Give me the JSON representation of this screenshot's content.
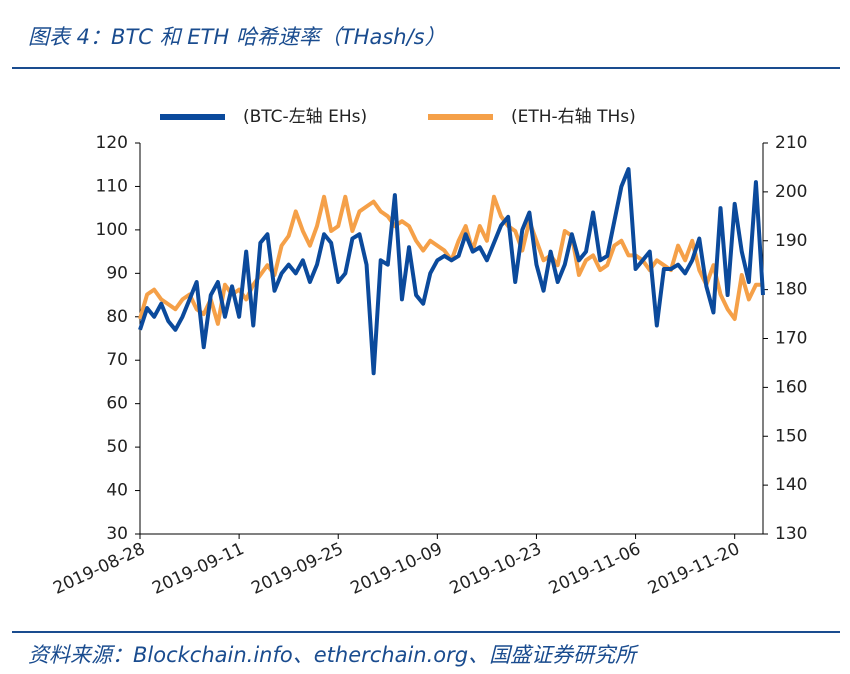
{
  "chart_data": {
    "type": "line",
    "title": "图表 4：BTC 和 ETH 哈希速率（THash/s）",
    "source": "资料来源：Blockchain.info、etherchain.org、国盛证券研究所",
    "x": [
      "2019-08-28",
      "2019-08-29",
      "2019-08-30",
      "2019-08-31",
      "2019-09-01",
      "2019-09-02",
      "2019-09-03",
      "2019-09-04",
      "2019-09-05",
      "2019-09-06",
      "2019-09-07",
      "2019-09-08",
      "2019-09-09",
      "2019-09-10",
      "2019-09-11",
      "2019-09-12",
      "2019-09-13",
      "2019-09-14",
      "2019-09-15",
      "2019-09-16",
      "2019-09-17",
      "2019-09-18",
      "2019-09-19",
      "2019-09-20",
      "2019-09-21",
      "2019-09-22",
      "2019-09-23",
      "2019-09-24",
      "2019-09-25",
      "2019-09-26",
      "2019-09-27",
      "2019-09-28",
      "2019-09-29",
      "2019-09-30",
      "2019-10-01",
      "2019-10-02",
      "2019-10-03",
      "2019-10-04",
      "2019-10-05",
      "2019-10-06",
      "2019-10-07",
      "2019-10-08",
      "2019-10-09",
      "2019-10-10",
      "2019-10-11",
      "2019-10-12",
      "2019-10-13",
      "2019-10-14",
      "2019-10-15",
      "2019-10-16",
      "2019-10-17",
      "2019-10-18",
      "2019-10-19",
      "2019-10-20",
      "2019-10-21",
      "2019-10-22",
      "2019-10-23",
      "2019-10-24",
      "2019-10-25",
      "2019-10-26",
      "2019-10-27",
      "2019-10-28",
      "2019-10-29",
      "2019-10-30",
      "2019-10-31",
      "2019-11-01",
      "2019-11-02",
      "2019-11-03",
      "2019-11-04",
      "2019-11-05",
      "2019-11-06",
      "2019-11-07",
      "2019-11-08",
      "2019-11-09",
      "2019-11-10",
      "2019-11-11",
      "2019-11-12",
      "2019-11-13",
      "2019-11-14",
      "2019-11-15",
      "2019-11-16",
      "2019-11-17",
      "2019-11-18",
      "2019-11-19",
      "2019-11-20",
      "2019-11-21",
      "2019-11-22",
      "2019-11-23",
      "2019-11-24"
    ],
    "xticks": [
      "2019-08-28",
      "2019-09-11",
      "2019-09-25",
      "2019-10-09",
      "2019-10-23",
      "2019-11-06",
      "2019-11-20"
    ],
    "series": [
      {
        "name": "(BTC-左轴 EHs)",
        "color": "#0b4a9c",
        "values": [
          77,
          82,
          80,
          83,
          79,
          77,
          80,
          84,
          88,
          73,
          85,
          88,
          80,
          87,
          80,
          95,
          78,
          97,
          99,
          86,
          90,
          92,
          90,
          93,
          88,
          92,
          99,
          97,
          88,
          90,
          98,
          99,
          92,
          67,
          93,
          92,
          108,
          84,
          96,
          85,
          83,
          90,
          93,
          94,
          93,
          94,
          99,
          95,
          96,
          93,
          97,
          101,
          103,
          88,
          100,
          104,
          92,
          86,
          95,
          88,
          92,
          99,
          93,
          95,
          104,
          93,
          94,
          102,
          110,
          114,
          91,
          93,
          95,
          78,
          91,
          91,
          92,
          90,
          93,
          98,
          87,
          81,
          105,
          85,
          106,
          95,
          88,
          111,
          85
        ]
      },
      {
        "name": "(ETH-右轴 THs)",
        "color": "#f5a048",
        "axis": "y2",
        "values": [
          174,
          179,
          180,
          178,
          177,
          176,
          178,
          179,
          176,
          175,
          178,
          173,
          181,
          179,
          180,
          178,
          181,
          183,
          185,
          183,
          189,
          191,
          196,
          192,
          189,
          193,
          199,
          192,
          193,
          199,
          192,
          196,
          197,
          198,
          196,
          195,
          193,
          194,
          193,
          190,
          188,
          190,
          189,
          188,
          186,
          190,
          193,
          188,
          193,
          190,
          199,
          195,
          193,
          192,
          188,
          194,
          190,
          186,
          187,
          185,
          192,
          191,
          183,
          186,
          187,
          184,
          185,
          189,
          190,
          187,
          187,
          186,
          184,
          186,
          185,
          184,
          189,
          186,
          190,
          184,
          181,
          185,
          179,
          176,
          174,
          183,
          178,
          181,
          181
        ]
      }
    ],
    "ylim": [
      30,
      120
    ],
    "yticks": [
      30,
      40,
      50,
      60,
      70,
      80,
      90,
      100,
      110,
      120
    ],
    "y2lim": [
      130,
      210
    ],
    "y2ticks": [
      130,
      140,
      150,
      160,
      170,
      180,
      190,
      200,
      210
    ]
  }
}
